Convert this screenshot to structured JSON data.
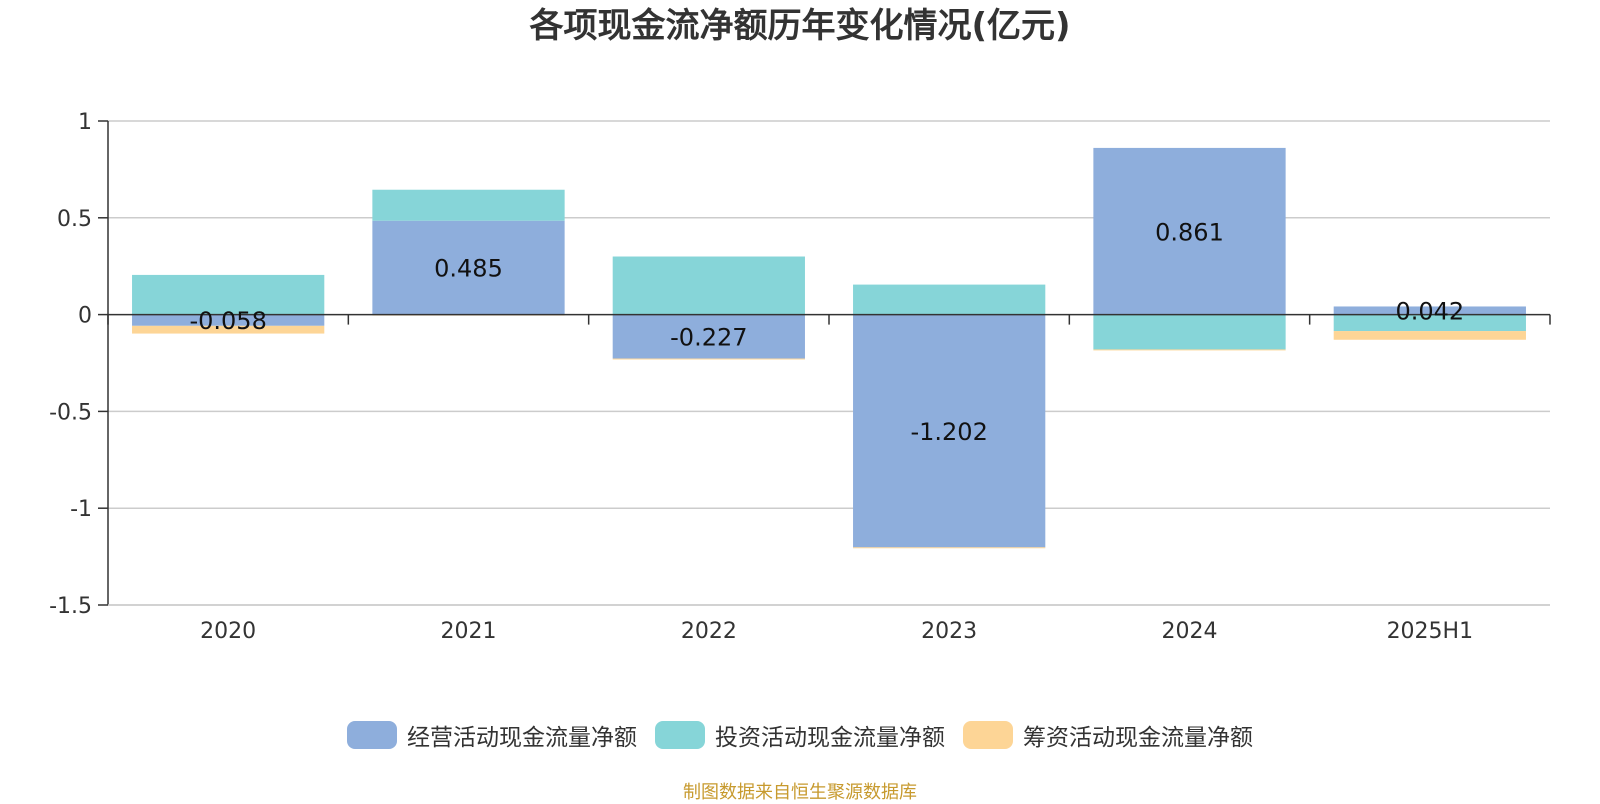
{
  "title": "各项现金流净额历年变化情况(亿元)",
  "footer": "制图数据来自恒生聚源数据库",
  "chart_data": {
    "type": "bar",
    "stacked": true,
    "title": "各项现金流净额历年变化情况(亿元)",
    "categories": [
      "2020",
      "2021",
      "2022",
      "2023",
      "2024",
      "2025H1"
    ],
    "ylim": [
      -1.5,
      1
    ],
    "yticks": [
      1,
      0.5,
      0,
      -0.5,
      -1,
      -1.5
    ],
    "ytick_labels": [
      "1",
      "0.5",
      "0",
      "-0.5",
      "-1",
      "-1.5"
    ],
    "grid": true,
    "legend_position": "bottom",
    "series": [
      {
        "name": "经营活动现金流量净额",
        "color": "#8eaedc",
        "values": [
          -0.058,
          0.485,
          -0.227,
          -1.202,
          0.861,
          0.042
        ],
        "labels": [
          "-0.058",
          "0.485",
          "-0.227",
          "-1.202",
          "0.861",
          "0.042"
        ]
      },
      {
        "name": "投资活动现金流量净额",
        "color": "#86d5d8",
        "values": [
          0.205,
          0.16,
          0.3,
          0.155,
          -0.18,
          -0.085
        ]
      },
      {
        "name": "筹资活动现金流量净额",
        "color": "#fdd596",
        "values": [
          -0.04,
          -0.005,
          -0.005,
          -0.005,
          -0.005,
          -0.045
        ]
      }
    ]
  }
}
